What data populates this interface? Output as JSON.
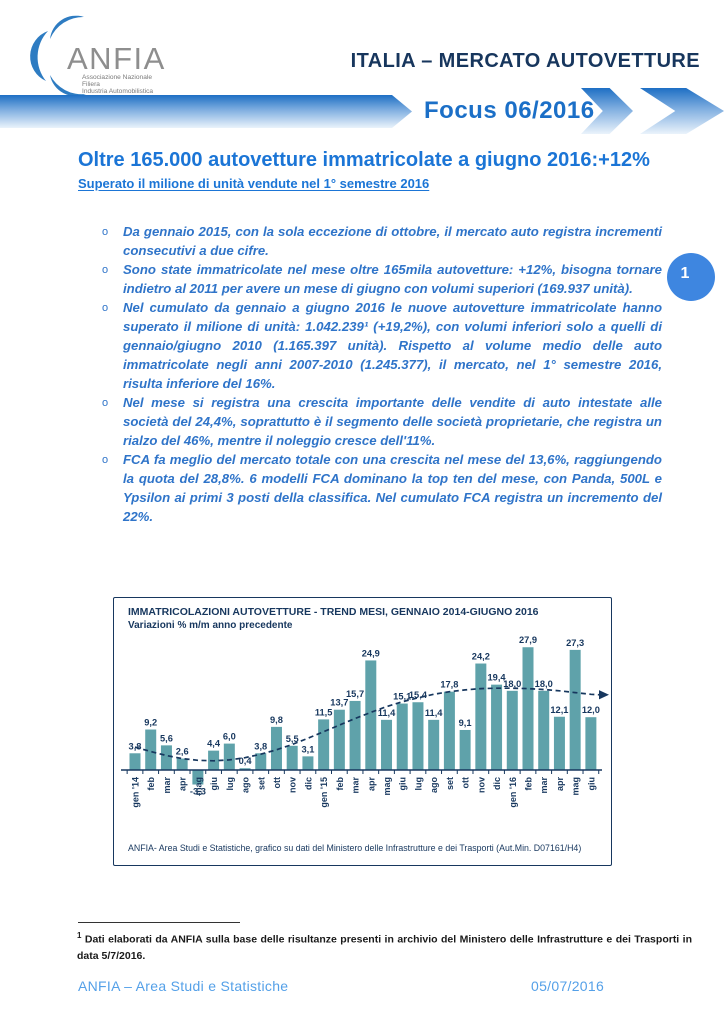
{
  "header": {
    "logo": {
      "wordmark": "ANFIA",
      "tagline_lines": [
        "Associazione Nazionale",
        "Filiera",
        "Industria Automobilistica"
      ]
    },
    "market_title": "ITALIA – MERCATO AUTOVETTURE",
    "focus_label": "Focus 06/2016"
  },
  "page_badge": "1",
  "article": {
    "title": "Oltre 165.000 autovetture immatricolate a giugno 2016:+12%",
    "subtitle": "Superato il milione di unità vendute nel 1° semestre 2016",
    "bullets": [
      "Da gennaio 2015, con la sola eccezione di ottobre, il mercato auto registra incrementi consecutivi a due cifre.",
      "Sono state immatricolate nel mese oltre 165mila autovetture: +12%, bisogna tornare indietro al 2011 per avere un mese di giugno con volumi superiori (169.937 unità).",
      "Nel cumulato da gennaio a giugno 2016 le nuove autovetture immatricolate hanno superato il milione di unità: 1.042.239¹ (+19,2%), con volumi inferiori solo a quelli di gennaio/giugno 2010 (1.165.397 unità). Rispetto al volume medio delle auto immatricolate negli anni 2007-2010 (1.245.377), il mercato, nel 1° semestre 2016, risulta inferiore del 16%.",
      "Nel mese si registra una crescita importante delle vendite di auto intestate alle società del 24,4%, soprattutto è il segmento delle società proprietarie, che registra un rialzo del 46%, mentre il noleggio cresce dell'11%.",
      "FCA fa meglio del mercato totale con una crescita nel mese del 13,6%, raggiungendo la quota del 28,8%. 6 modelli FCA dominano la top ten del mese, con Panda, 500L e Ypsilon ai primi 3 posti della classifica. Nel cumulato FCA registra un incremento del 22%."
    ]
  },
  "chart_data": {
    "type": "bar",
    "title": "IMMATRICOLAZIONI AUTOVETTURE - TREND MESI, GENNAIO 2014-GIUGNO 2016",
    "subtitle": "Variazioni % m/m anno precedente",
    "categories": [
      "gen '14",
      "feb",
      "mar",
      "apr",
      "mag",
      "giu",
      "lug",
      "ago",
      "set",
      "ott",
      "nov",
      "dic",
      "gen '15",
      "feb",
      "mar",
      "apr",
      "mag",
      "giu",
      "lug",
      "ago",
      "set",
      "ott",
      "nov",
      "dic",
      "gen '16",
      "feb",
      "mar",
      "apr",
      "mag",
      "giu"
    ],
    "values": [
      3.8,
      9.2,
      5.6,
      2.6,
      -3.3,
      4.4,
      6.0,
      0.4,
      3.8,
      9.8,
      5.5,
      3.1,
      11.5,
      13.7,
      15.7,
      24.9,
      11.4,
      15.1,
      15.4,
      11.4,
      17.8,
      9.1,
      24.2,
      19.4,
      18.0,
      27.9,
      18.0,
      12.1,
      27.3,
      12.0
    ],
    "value_labels": [
      "3,8",
      "9,2",
      "5,6",
      "2,6",
      "-3,3",
      "4,4",
      "6,0",
      "0,4",
      "3,8",
      "9,8",
      "5,5",
      "3,1",
      "11,5",
      "13,7",
      "15,7",
      "24,9",
      "11,4",
      "15,1",
      "15,4",
      "11,4",
      "17,8",
      "9,1",
      "24,2",
      "19,4",
      "18,0",
      "27,9",
      "18,0",
      "12,1",
      "27,3",
      "12,0"
    ],
    "trend_line": {
      "style": "dashed-with-arrow",
      "values": [
        5.2,
        4.2,
        3.3,
        2.6,
        2.2,
        2.1,
        2.3,
        2.8,
        3.6,
        4.6,
        5.8,
        7.2,
        8.7,
        10.2,
        11.7,
        13.1,
        14.4,
        15.5,
        16.4,
        17.2,
        17.8,
        18.2,
        18.5,
        18.6,
        18.6,
        18.5,
        18.3,
        18.0,
        17.6,
        17.2
      ]
    },
    "ylim": [
      -5,
      31
    ],
    "grid": false,
    "legend": "none",
    "bar_color": "#5FA2AA",
    "label_color": "#17375E",
    "source": "ANFIA- Area Studi e Statistiche, grafico  su dati del Ministero delle Infrastrutture e dei Trasporti (Aut.Min. D07161/H4)"
  },
  "footnote": {
    "marker": "1",
    "text": " Dati elaborati da ANFIA sulla base delle risultanze presenti in archivio del Ministero delle Infrastrutture e dei Trasporti in data 5/7/2016."
  },
  "footer": {
    "left": "ANFIA – Area Studi e Statistiche",
    "right": "05/07/2016"
  }
}
